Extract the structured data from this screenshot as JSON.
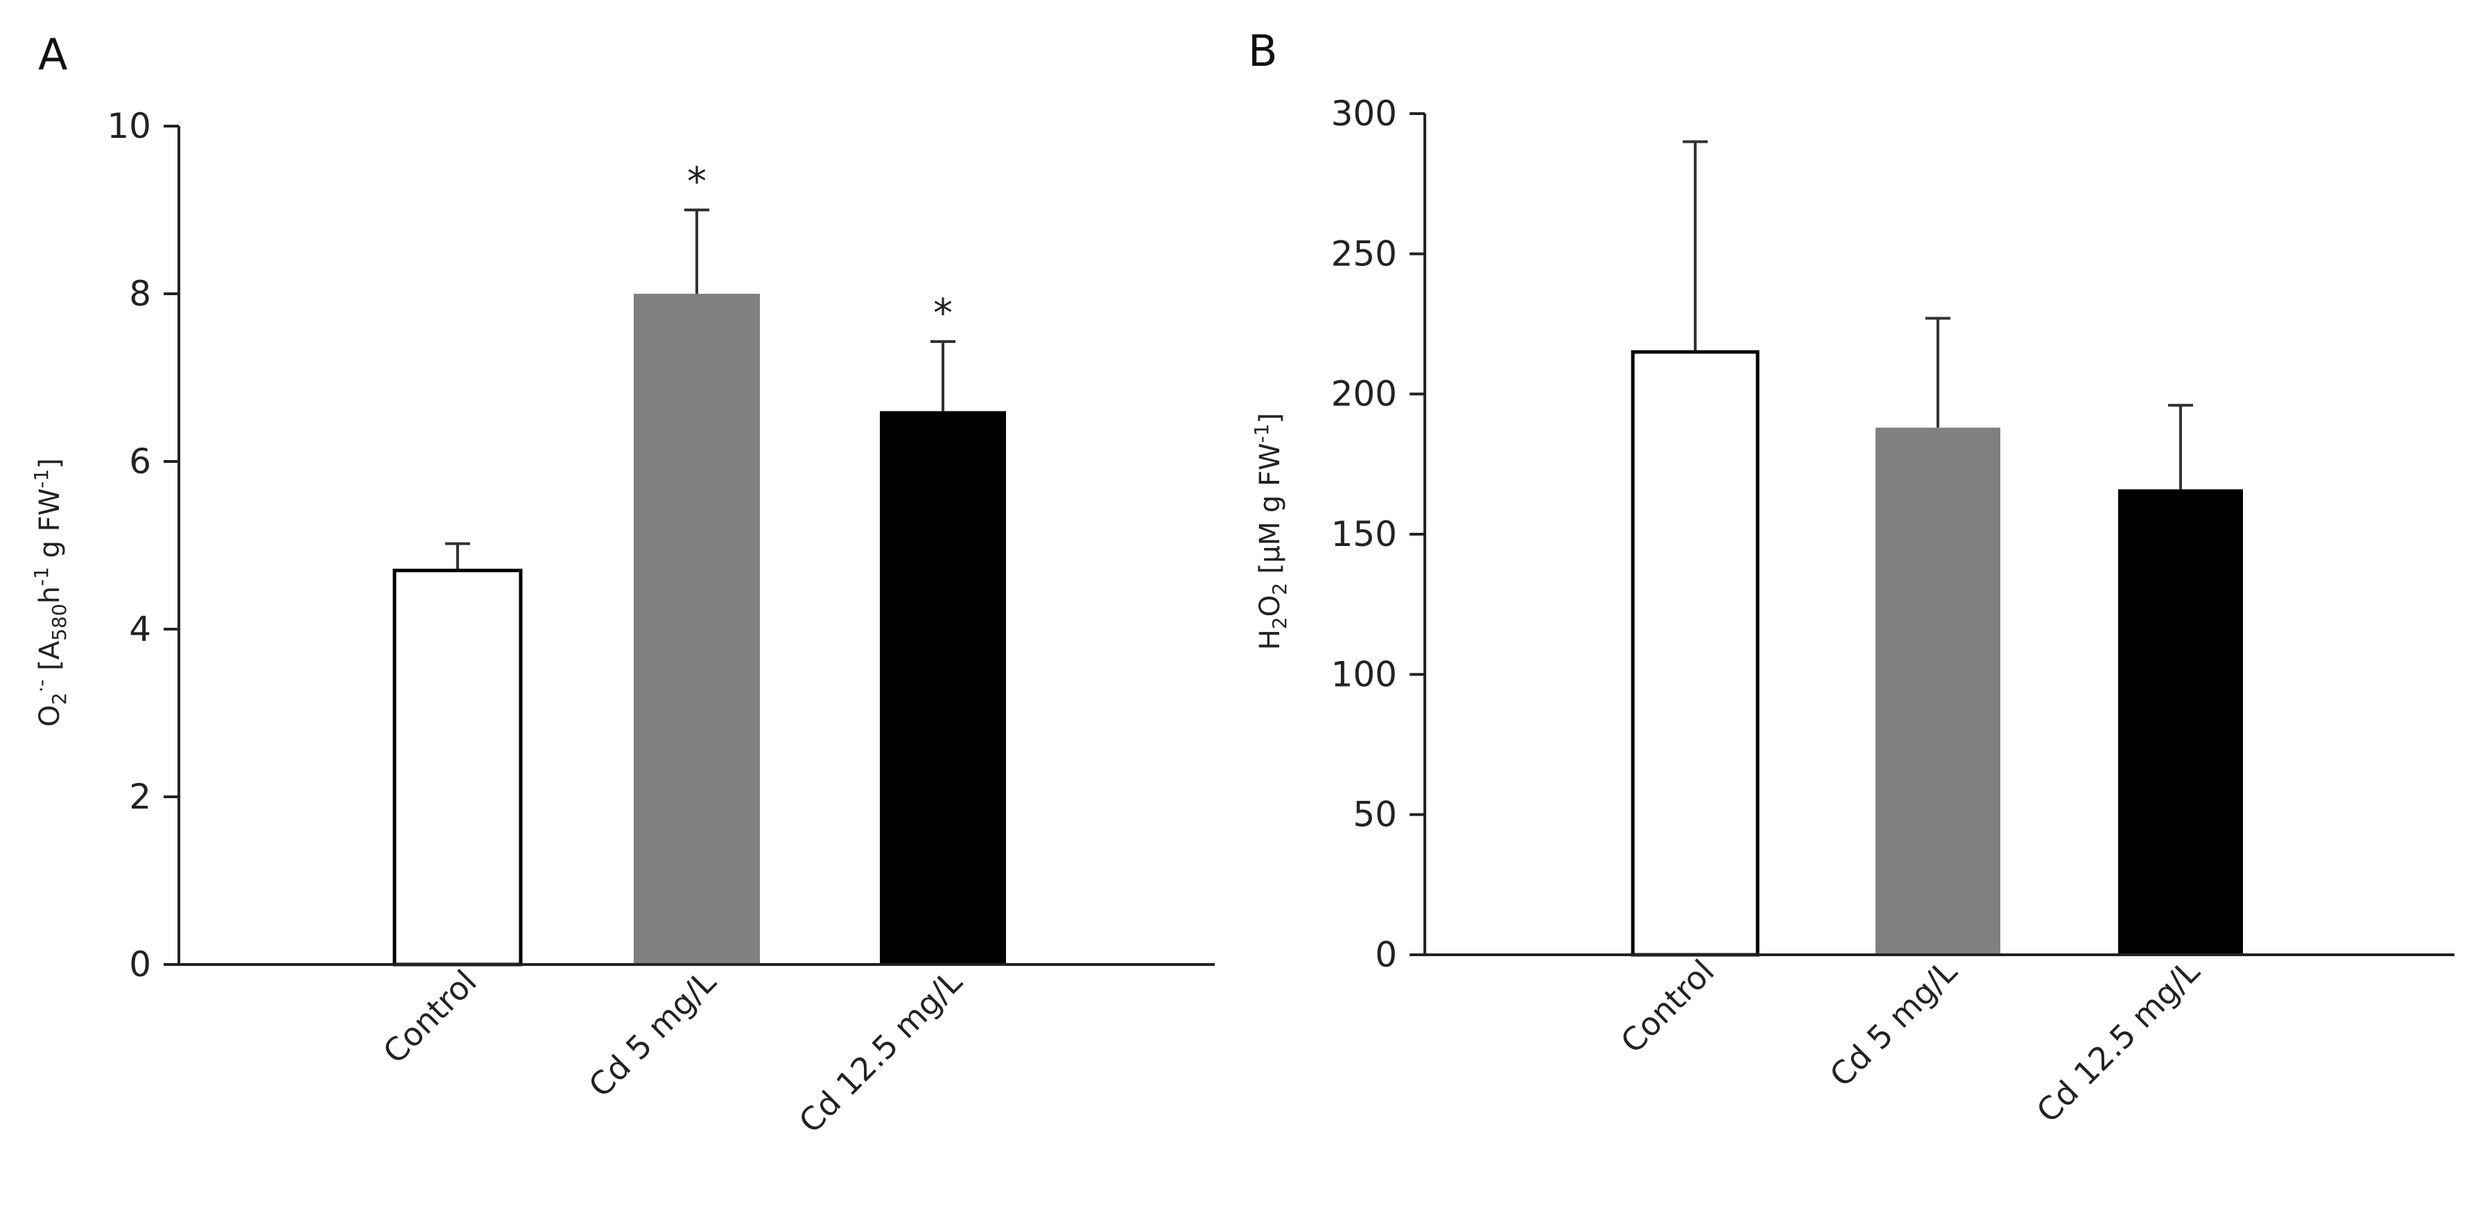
{
  "chart_data": [
    {
      "panel": "A",
      "type": "bar",
      "categories": [
        "Control",
        "Cd 5 mg/L",
        "Cd 12.5 mg/L"
      ],
      "values": [
        4.7,
        8.0,
        6.6
      ],
      "errors": [
        0.32,
        1.0,
        0.83
      ],
      "significance": [
        "",
        "*",
        "*"
      ],
      "colors": [
        "#ffffff",
        "#808080",
        "#000000"
      ],
      "ylabel": {
        "main": "O",
        "sub1": "2",
        "sup1": "·-",
        "mid1": " [A",
        "sub2": "580",
        "mid2": "h",
        "sup2": "-1",
        "mid3": " g FW",
        "sup3": "-1",
        "end": "]"
      },
      "ylim": [
        0,
        10
      ],
      "yticks": [
        "0",
        "2",
        "4",
        "6",
        "8",
        "10"
      ],
      "grid": false
    },
    {
      "panel": "B",
      "type": "bar",
      "categories": [
        "Control",
        "Cd 5 mg/L",
        "Cd 12.5 mg/L"
      ],
      "values": [
        215,
        188,
        166
      ],
      "errors": [
        75,
        39,
        30
      ],
      "significance": [
        "",
        "",
        ""
      ],
      "colors": [
        "#ffffff",
        "#808080",
        "#000000"
      ],
      "ylabel": {
        "main": "H",
        "sub1": "2",
        "mid1": "O",
        "sub2": "2",
        "mid2": " [µM g FW",
        "sup2": "-1",
        "end": "]"
      },
      "ylim": [
        0,
        300
      ],
      "yticks": [
        "0",
        "50",
        "100",
        "150",
        "200",
        "250",
        "300"
      ],
      "grid": false
    }
  ]
}
